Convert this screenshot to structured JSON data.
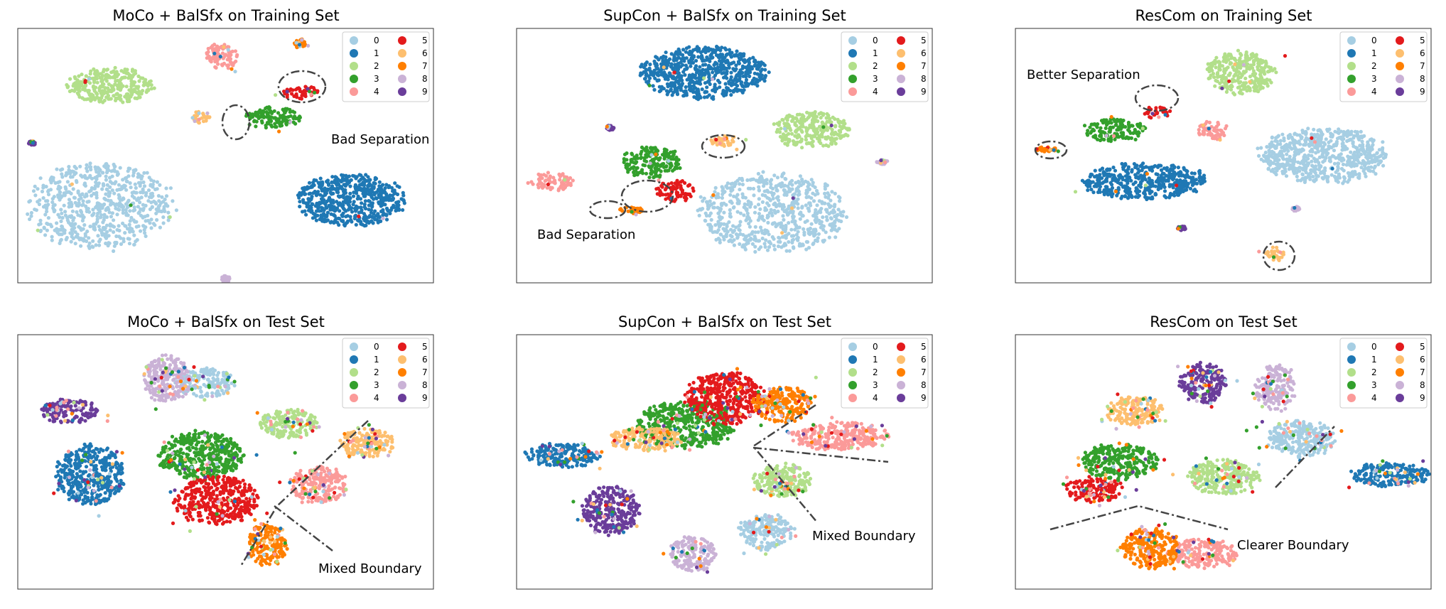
{
  "palette": {
    "0": "#a6cee3",
    "1": "#1f78b4",
    "2": "#b2df8a",
    "3": "#33a02c",
    "4": "#fb9a99",
    "5": "#e31a1c",
    "6": "#fdbf6f",
    "7": "#ff7f00",
    "8": "#cab2d6",
    "9": "#6a3d9a"
  },
  "chart_data": [
    {
      "type": "scatter",
      "title": "MoCo + BalSfx on Training Set",
      "legend": {
        "placement": "top-right",
        "entries": [
          "0",
          "1",
          "2",
          "3",
          "4",
          "5",
          "6",
          "7",
          "8",
          "9"
        ]
      },
      "grid": false,
      "annotations": [
        {
          "text": "Bad Separation"
        }
      ],
      "clusters": [
        {
          "label": "0",
          "cx": -0.6,
          "cy": -0.4,
          "rx": 0.37,
          "ry": 0.37
        },
        {
          "label": "1",
          "cx": 0.6,
          "cy": -0.35,
          "rx": 0.28,
          "ry": 0.22
        },
        {
          "label": "2",
          "cx": -0.55,
          "cy": 0.55,
          "rx": 0.22,
          "ry": 0.15
        },
        {
          "label": "3",
          "cx": 0.22,
          "cy": 0.3,
          "rx": 0.15,
          "ry": 0.09
        },
        {
          "label": "4",
          "cx": -0.02,
          "cy": 0.78,
          "rx": 0.08,
          "ry": 0.12
        },
        {
          "label": "5",
          "cx": 0.36,
          "cy": 0.5,
          "rx": 0.09,
          "ry": 0.06
        },
        {
          "label": "6",
          "cx": -0.12,
          "cy": 0.3,
          "rx": 0.05,
          "ry": 0.06
        },
        {
          "label": "7",
          "cx": 0.36,
          "cy": 0.88,
          "rx": 0.03,
          "ry": 0.04
        },
        {
          "label": "8",
          "cx": 0.0,
          "cy": -0.97,
          "rx": 0.02,
          "ry": 0.03
        },
        {
          "label": "9",
          "cx": -0.93,
          "cy": 0.1,
          "rx": 0.02,
          "ry": 0.02
        }
      ]
    },
    {
      "type": "scatter",
      "title": "SupCon + BalSfx on Training Set",
      "legend": {
        "placement": "top-right",
        "entries": [
          "0",
          "1",
          "2",
          "3",
          "4",
          "5",
          "6",
          "7",
          "8",
          "9"
        ]
      },
      "grid": false,
      "annotations": [
        {
          "text": "Bad Separation"
        }
      ],
      "clusters": [
        {
          "label": "0",
          "cx": 0.23,
          "cy": -0.45,
          "rx": 0.38,
          "ry": 0.33
        },
        {
          "label": "1",
          "cx": -0.1,
          "cy": 0.65,
          "rx": 0.33,
          "ry": 0.22
        },
        {
          "label": "2",
          "cx": 0.42,
          "cy": 0.2,
          "rx": 0.2,
          "ry": 0.15
        },
        {
          "label": "3",
          "cx": -0.35,
          "cy": -0.05,
          "rx": 0.15,
          "ry": 0.13
        },
        {
          "label": "4",
          "cx": -0.83,
          "cy": -0.2,
          "rx": 0.11,
          "ry": 0.08
        },
        {
          "label": "5",
          "cx": -0.23,
          "cy": -0.28,
          "rx": 0.1,
          "ry": 0.09
        },
        {
          "label": "6",
          "cx": 0.0,
          "cy": 0.12,
          "rx": 0.07,
          "ry": 0.05
        },
        {
          "label": "7",
          "cx": -0.45,
          "cy": -0.43,
          "rx": 0.06,
          "ry": 0.03
        },
        {
          "label": "8",
          "cx": 0.76,
          "cy": -0.05,
          "rx": 0.03,
          "ry": 0.02
        },
        {
          "label": "9",
          "cx": -0.55,
          "cy": 0.22,
          "rx": 0.02,
          "ry": 0.02
        }
      ]
    },
    {
      "type": "scatter",
      "title": "ResCom on Training Set",
      "legend": {
        "placement": "top-right",
        "entries": [
          "0",
          "1",
          "2",
          "3",
          "4",
          "5",
          "6",
          "7",
          "8",
          "9"
        ]
      },
      "grid": false,
      "annotations": [
        {
          "text": "Better Separation"
        }
      ],
      "clusters": [
        {
          "label": "0",
          "cx": 0.48,
          "cy": 0.0,
          "rx": 0.33,
          "ry": 0.23
        },
        {
          "label": "1",
          "cx": -0.38,
          "cy": -0.2,
          "rx": 0.32,
          "ry": 0.15
        },
        {
          "label": "2",
          "cx": 0.08,
          "cy": 0.65,
          "rx": 0.18,
          "ry": 0.18
        },
        {
          "label": "3",
          "cx": -0.52,
          "cy": 0.2,
          "rx": 0.16,
          "ry": 0.1
        },
        {
          "label": "4",
          "cx": -0.05,
          "cy": 0.2,
          "rx": 0.08,
          "ry": 0.08
        },
        {
          "label": "5",
          "cx": -0.32,
          "cy": 0.34,
          "rx": 0.07,
          "ry": 0.05
        },
        {
          "label": "6",
          "cx": 0.25,
          "cy": -0.77,
          "rx": 0.05,
          "ry": 0.06
        },
        {
          "label": "7",
          "cx": -0.85,
          "cy": 0.05,
          "rx": 0.05,
          "ry": 0.02
        },
        {
          "label": "8",
          "cx": 0.35,
          "cy": -0.42,
          "rx": 0.02,
          "ry": 0.02
        },
        {
          "label": "9",
          "cx": -0.2,
          "cy": -0.57,
          "rx": 0.02,
          "ry": 0.02
        }
      ]
    },
    {
      "type": "scatter",
      "title": "MoCo + BalSfx on Test Set",
      "legend": {
        "placement": "top-right",
        "entries": [
          "0",
          "1",
          "2",
          "3",
          "4",
          "5",
          "6",
          "7",
          "8",
          "9"
        ]
      },
      "grid": false,
      "annotations": [
        {
          "text": "Mixed Boundary"
        }
      ],
      "clusters": [
        {
          "label": "0",
          "cx": -0.1,
          "cy": 0.62,
          "rx": 0.15,
          "ry": 0.12
        },
        {
          "label": "1",
          "cx": -0.65,
          "cy": -0.1,
          "rx": 0.18,
          "ry": 0.25
        },
        {
          "label": "2",
          "cx": 0.3,
          "cy": 0.3,
          "rx": 0.15,
          "ry": 0.12
        },
        {
          "label": "3",
          "cx": -0.12,
          "cy": 0.05,
          "rx": 0.22,
          "ry": 0.2
        },
        {
          "label": "4",
          "cx": 0.45,
          "cy": -0.18,
          "rx": 0.15,
          "ry": 0.15
        },
        {
          "label": "5",
          "cx": -0.05,
          "cy": -0.3,
          "rx": 0.22,
          "ry": 0.2
        },
        {
          "label": "6",
          "cx": 0.68,
          "cy": 0.15,
          "rx": 0.14,
          "ry": 0.12
        },
        {
          "label": "7",
          "cx": 0.2,
          "cy": -0.65,
          "rx": 0.1,
          "ry": 0.18
        },
        {
          "label": "8",
          "cx": -0.28,
          "cy": 0.65,
          "rx": 0.12,
          "ry": 0.2
        },
        {
          "label": "9",
          "cx": -0.75,
          "cy": 0.4,
          "rx": 0.15,
          "ry": 0.1
        }
      ]
    },
    {
      "type": "scatter",
      "title": "SupCon + BalSfx on Test Set",
      "legend": {
        "placement": "top-right",
        "entries": [
          "0",
          "1",
          "2",
          "3",
          "4",
          "5",
          "6",
          "7",
          "8",
          "9"
        ]
      },
      "grid": false,
      "annotations": [
        {
          "text": "Mixed Boundary"
        }
      ],
      "clusters": [
        {
          "label": "0",
          "cx": 0.2,
          "cy": -0.55,
          "rx": 0.14,
          "ry": 0.15
        },
        {
          "label": "1",
          "cx": -0.78,
          "cy": 0.05,
          "rx": 0.2,
          "ry": 0.1
        },
        {
          "label": "2",
          "cx": 0.28,
          "cy": -0.15,
          "rx": 0.15,
          "ry": 0.14
        },
        {
          "label": "3",
          "cx": -0.18,
          "cy": 0.3,
          "rx": 0.25,
          "ry": 0.2
        },
        {
          "label": "4",
          "cx": 0.55,
          "cy": 0.2,
          "rx": 0.25,
          "ry": 0.12
        },
        {
          "label": "5",
          "cx": 0.0,
          "cy": 0.5,
          "rx": 0.2,
          "ry": 0.22
        },
        {
          "label": "6",
          "cx": -0.38,
          "cy": 0.18,
          "rx": 0.2,
          "ry": 0.1
        },
        {
          "label": "7",
          "cx": 0.28,
          "cy": 0.45,
          "rx": 0.15,
          "ry": 0.15
        },
        {
          "label": "8",
          "cx": -0.15,
          "cy": -0.72,
          "rx": 0.12,
          "ry": 0.15
        },
        {
          "label": "9",
          "cx": -0.55,
          "cy": -0.38,
          "rx": 0.15,
          "ry": 0.2
        }
      ]
    },
    {
      "type": "scatter",
      "title": "ResCom on Test Set",
      "legend": {
        "placement": "top-right",
        "entries": [
          "0",
          "1",
          "2",
          "3",
          "4",
          "5",
          "6",
          "7",
          "8",
          "9"
        ]
      },
      "grid": false,
      "annotations": [
        {
          "text": "Clearer Boundary"
        }
      ],
      "clusters": [
        {
          "label": "0",
          "cx": 0.38,
          "cy": 0.18,
          "rx": 0.18,
          "ry": 0.15
        },
        {
          "label": "1",
          "cx": 0.8,
          "cy": -0.1,
          "rx": 0.2,
          "ry": 0.1
        },
        {
          "label": "2",
          "cx": 0.0,
          "cy": -0.12,
          "rx": 0.18,
          "ry": 0.15
        },
        {
          "label": "3",
          "cx": -0.5,
          "cy": 0.0,
          "rx": 0.2,
          "ry": 0.15
        },
        {
          "label": "4",
          "cx": -0.1,
          "cy": -0.72,
          "rx": 0.18,
          "ry": 0.12
        },
        {
          "label": "5",
          "cx": -0.62,
          "cy": -0.22,
          "rx": 0.15,
          "ry": 0.1
        },
        {
          "label": "6",
          "cx": -0.42,
          "cy": 0.4,
          "rx": 0.15,
          "ry": 0.12
        },
        {
          "label": "7",
          "cx": -0.35,
          "cy": -0.68,
          "rx": 0.15,
          "ry": 0.17
        },
        {
          "label": "8",
          "cx": 0.25,
          "cy": 0.58,
          "rx": 0.1,
          "ry": 0.2
        },
        {
          "label": "9",
          "cx": -0.1,
          "cy": 0.62,
          "rx": 0.12,
          "ry": 0.17
        }
      ]
    }
  ]
}
